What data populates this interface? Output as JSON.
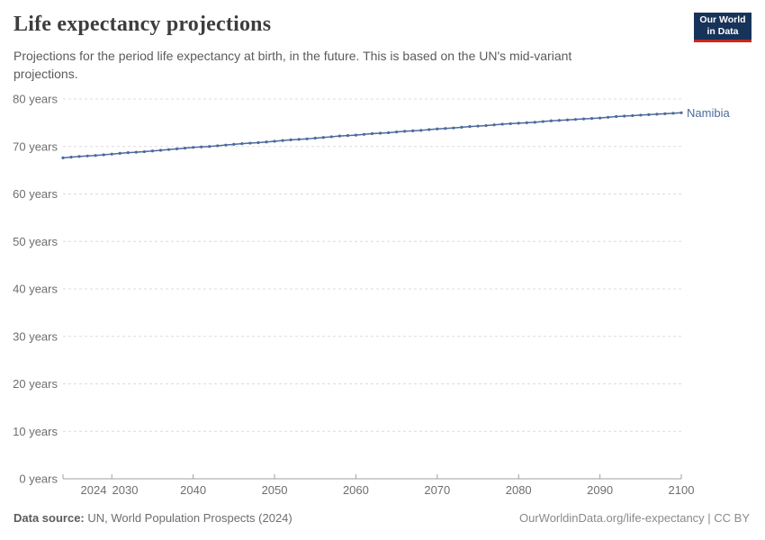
{
  "header": {
    "title": "Life expectancy projections",
    "subtitle": "Projections for the period life expectancy at birth, in the future. This is based on the UN's mid-variant projections.",
    "logo": {
      "line1": "Our World",
      "line2": "in Data",
      "bg_color": "#183359",
      "accent_color": "#c8281e"
    }
  },
  "chart_data": {
    "type": "line",
    "title": "Life expectancy projections",
    "xlabel": "",
    "ylabel": "",
    "unit": "years",
    "xlim": [
      2024,
      2100
    ],
    "ylim": [
      0,
      80
    ],
    "grid": "horizontal-dashed",
    "legend_position": "end-of-line-label",
    "x": [
      2024,
      2025,
      2026,
      2027,
      2028,
      2029,
      2030,
      2031,
      2032,
      2033,
      2034,
      2035,
      2036,
      2037,
      2038,
      2039,
      2040,
      2041,
      2042,
      2043,
      2044,
      2045,
      2046,
      2047,
      2048,
      2049,
      2050,
      2051,
      2052,
      2053,
      2054,
      2055,
      2056,
      2057,
      2058,
      2059,
      2060,
      2061,
      2062,
      2063,
      2064,
      2065,
      2066,
      2067,
      2068,
      2069,
      2070,
      2071,
      2072,
      2073,
      2074,
      2075,
      2076,
      2077,
      2078,
      2079,
      2080,
      2081,
      2082,
      2083,
      2084,
      2085,
      2086,
      2087,
      2088,
      2089,
      2090,
      2091,
      2092,
      2093,
      2094,
      2095,
      2096,
      2097,
      2098,
      2099,
      2100
    ],
    "series": [
      {
        "name": "Namibia",
        "color": "#4c6a9d",
        "values": [
          67.6,
          67.75,
          67.9,
          68.0,
          68.1,
          68.25,
          68.4,
          68.55,
          68.7,
          68.8,
          68.9,
          69.05,
          69.2,
          69.35,
          69.5,
          69.65,
          69.8,
          69.9,
          70.0,
          70.15,
          70.3,
          70.45,
          70.6,
          70.7,
          70.8,
          70.95,
          71.1,
          71.25,
          71.4,
          71.5,
          71.6,
          71.75,
          71.9,
          72.05,
          72.2,
          72.3,
          72.4,
          72.55,
          72.7,
          72.8,
          72.9,
          73.05,
          73.2,
          73.3,
          73.4,
          73.55,
          73.7,
          73.8,
          73.9,
          74.05,
          74.2,
          74.3,
          74.4,
          74.55,
          74.7,
          74.8,
          74.9,
          75.0,
          75.1,
          75.25,
          75.4,
          75.5,
          75.6,
          75.7,
          75.8,
          75.9,
          76.0,
          76.15,
          76.3,
          76.4,
          76.5,
          76.6,
          76.7,
          76.8,
          76.9,
          77.0,
          77.1
        ]
      }
    ],
    "y_ticks": [
      0,
      10,
      20,
      30,
      40,
      50,
      60,
      70,
      80
    ],
    "y_tick_labels": [
      "0 years",
      "10 years",
      "20 years",
      "30 years",
      "40 years",
      "50 years",
      "60 years",
      "70 years",
      "80 years"
    ],
    "x_ticks": [
      2024,
      2030,
      2040,
      2050,
      2060,
      2070,
      2080,
      2090,
      2100
    ],
    "x_tick_labels": [
      "2024",
      "2030",
      "2040",
      "2050",
      "2060",
      "2070",
      "2080",
      "2090",
      "2100"
    ]
  },
  "style_colors": {
    "gridline": "#dcdcdc",
    "axis": "#a0a0a0",
    "tick_label": "#6e6e6e"
  },
  "footer": {
    "source_label": "Data source:",
    "source_text": " UN, World Population Prospects (2024)",
    "credit": "OurWorldinData.org/life-expectancy | CC BY"
  }
}
